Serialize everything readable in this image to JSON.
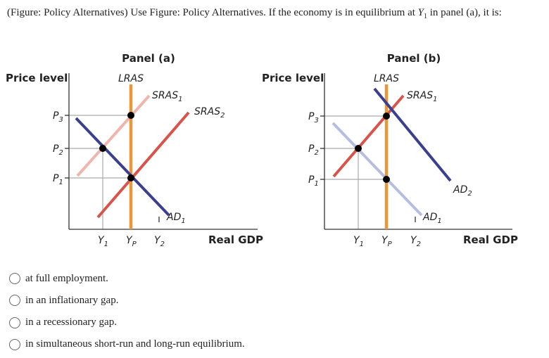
{
  "question": {
    "lead": "(Figure: Policy Alternatives) Use Figure: Policy Alternatives. If the economy is in equilibrium at ",
    "var": "Y",
    "sub": "1",
    "tail": " in panel (a), it is:"
  },
  "panel_a": {
    "title": "Panel (a)",
    "ylabel": "Price level",
    "xlabel": "Real GDP",
    "lras": "LRAS",
    "sras1": "SRAS",
    "sras1_sub": "1",
    "sras2": "SRAS",
    "sras2_sub": "2",
    "ad1": "AD",
    "ad1_sub": "1",
    "p3": "P",
    "p3_sub": "3",
    "p2": "P",
    "p2_sub": "2",
    "p1": "P",
    "p1_sub": "1",
    "y1": "Y",
    "y1_sub": "1",
    "yp": "Y",
    "yp_sub": "P",
    "y2": "Y",
    "y2_sub": "2"
  },
  "panel_b": {
    "title": "Panel (b)",
    "ylabel": "Price level",
    "xlabel": "Real GDP",
    "lras": "LRAS",
    "sras1": "SRAS",
    "sras1_sub": "1",
    "ad1": "AD",
    "ad1_sub": "1",
    "ad2": "AD",
    "ad2_sub": "2",
    "p3": "P",
    "p3_sub": "3",
    "p2": "P",
    "p2_sub": "2",
    "p1": "P",
    "p1_sub": "1",
    "y1": "Y",
    "y1_sub": "1",
    "yp": "Y",
    "yp_sub": "P",
    "y2": "Y",
    "y2_sub": "2"
  },
  "colors": {
    "lras": "#e8973a",
    "sras_dark": "#d9534a",
    "sras_light": "#f0b5ab",
    "ad_dark": "#3a3f8f",
    "ad_light": "#b6bde3",
    "guide": "#aaaaaa"
  },
  "options": [
    {
      "label": "at full employment."
    },
    {
      "label": "in an inflationary gap."
    },
    {
      "label": "in a recessionary gap."
    },
    {
      "label": "in simultaneous short-run and long-run equilibrium."
    }
  ]
}
